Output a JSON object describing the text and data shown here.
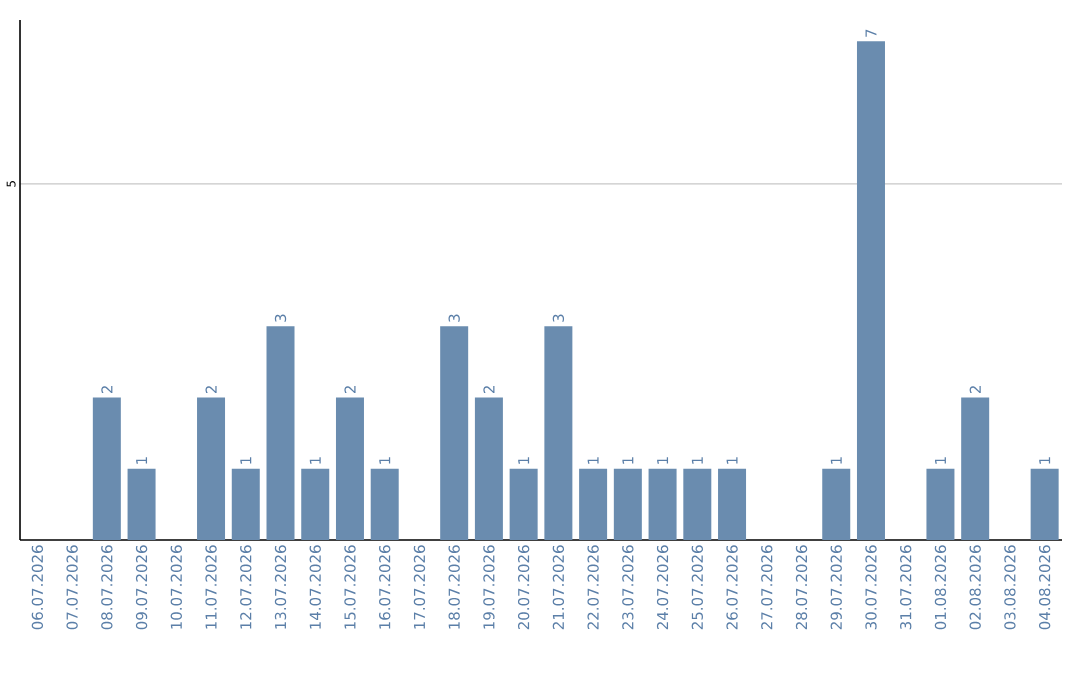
{
  "chart_data": {
    "type": "bar",
    "categories": [
      "06.07.2026",
      "07.07.2026",
      "08.07.2026",
      "09.07.2026",
      "10.07.2026",
      "11.07.2026",
      "12.07.2026",
      "13.07.2026",
      "14.07.2026",
      "15.07.2026",
      "16.07.2026",
      "17.07.2026",
      "18.07.2026",
      "19.07.2026",
      "20.07.2026",
      "21.07.2026",
      "22.07.2026",
      "23.07.2026",
      "24.07.2026",
      "25.07.2026",
      "26.07.2026",
      "27.07.2026",
      "28.07.2026",
      "29.07.2026",
      "30.07.2026",
      "31.07.2026",
      "01.08.2026",
      "02.08.2026",
      "03.08.2026",
      "04.08.2026"
    ],
    "values": [
      0,
      0,
      2,
      1,
      0,
      2,
      1,
      3,
      1,
      2,
      1,
      0,
      3,
      2,
      1,
      3,
      1,
      1,
      1,
      1,
      1,
      0,
      0,
      1,
      7,
      0,
      1,
      2,
      0,
      1
    ],
    "value_labels": [
      null,
      null,
      "2",
      "1",
      null,
      "2",
      "1",
      "3",
      "1",
      "2",
      "1",
      null,
      "3",
      "2",
      "1",
      "3",
      "1",
      "1",
      "1",
      "1",
      "1",
      null,
      null,
      "1",
      "7",
      null,
      "1",
      "2",
      null,
      "1"
    ],
    "color": "#6a8caf",
    "ylim": [
      0,
      7.3
    ],
    "yticks": [
      5
    ],
    "grid": "y"
  }
}
